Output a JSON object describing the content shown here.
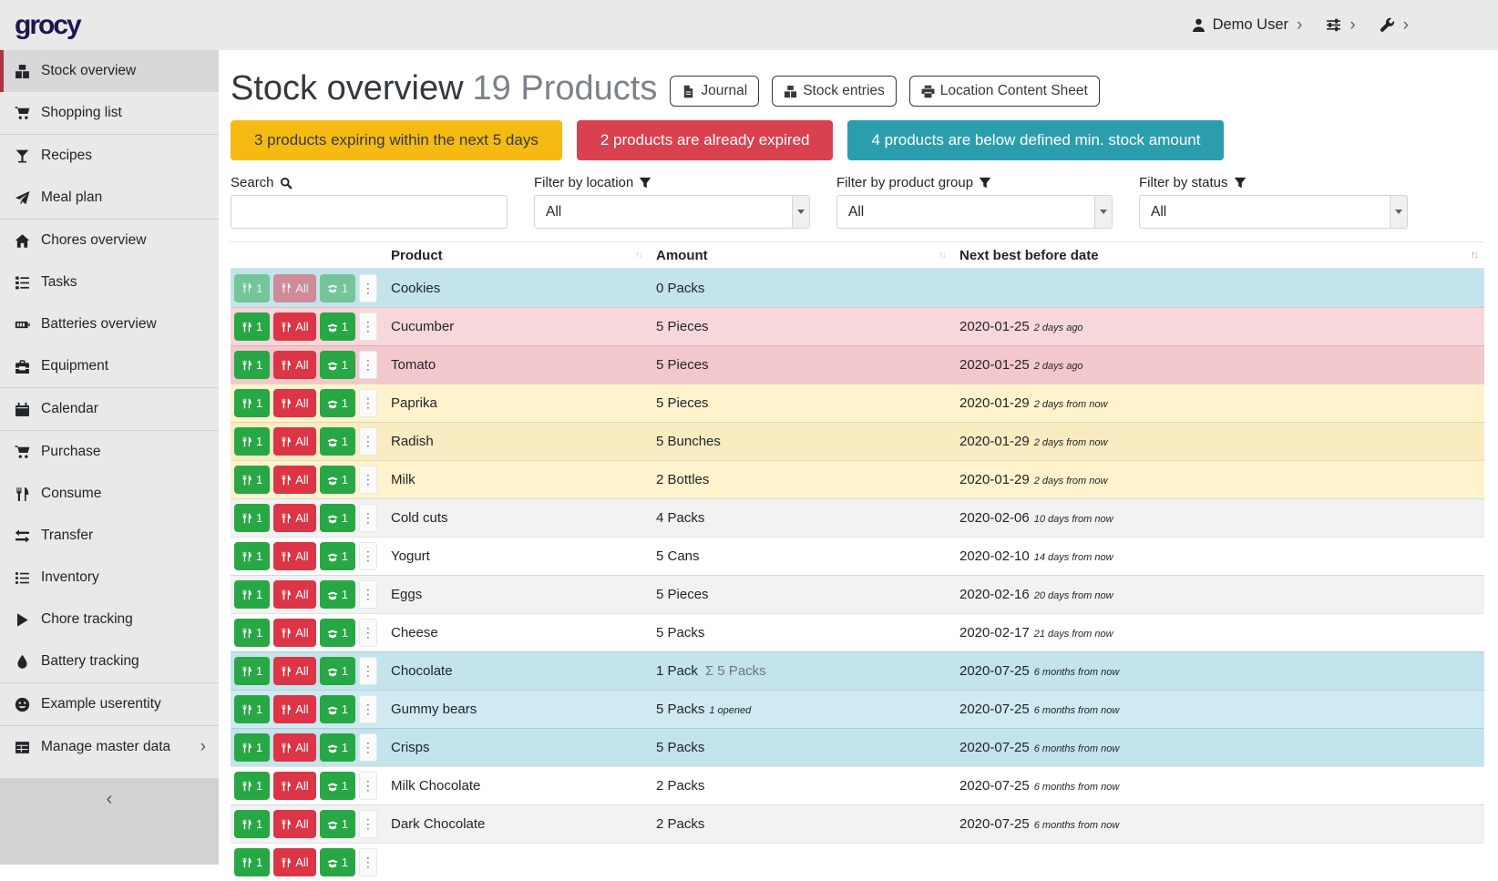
{
  "app": {
    "logo_text": "grocy"
  },
  "topbar": {
    "user_label": "Demo User",
    "user_icon": "user-icon",
    "settings_icon": "sliders-icon",
    "admin_icon": "wrench-icon"
  },
  "sidebar": {
    "items": [
      {
        "label": "Stock overview",
        "icon": "boxes-icon",
        "active": true
      },
      {
        "label": "Shopping list",
        "icon": "shopping-cart-icon",
        "divider_after": true
      },
      {
        "label": "Recipes",
        "icon": "cocktail-icon"
      },
      {
        "label": "Meal plan",
        "icon": "paper-plane-icon",
        "divider_after": true
      },
      {
        "label": "Chores overview",
        "icon": "home-icon"
      },
      {
        "label": "Tasks",
        "icon": "tasks-icon"
      },
      {
        "label": "Batteries overview",
        "icon": "battery-icon"
      },
      {
        "label": "Equipment",
        "icon": "toolbox-icon",
        "divider_after": true
      },
      {
        "label": "Calendar",
        "icon": "calendar-icon",
        "divider_after": true
      },
      {
        "label": "Purchase",
        "icon": "shopping-cart-icon"
      },
      {
        "label": "Consume",
        "icon": "utensils-icon"
      },
      {
        "label": "Transfer",
        "icon": "exchange-icon"
      },
      {
        "label": "Inventory",
        "icon": "list-icon"
      },
      {
        "label": "Chore tracking",
        "icon": "play-icon"
      },
      {
        "label": "Battery tracking",
        "icon": "drop-icon",
        "divider_after": true
      },
      {
        "label": "Example userentity",
        "icon": "smile-icon",
        "divider_after": true
      },
      {
        "label": "Manage master data",
        "icon": "table-icon",
        "has_submenu": true
      }
    ],
    "collapse_icon": "chevron-left-icon"
  },
  "header": {
    "title": "Stock overview",
    "subtitle": "19 Products",
    "buttons": [
      {
        "label": "Journal",
        "icon": "file-icon"
      },
      {
        "label": "Stock entries",
        "icon": "boxes-icon"
      },
      {
        "label": "Location Content Sheet",
        "icon": "print-icon"
      }
    ]
  },
  "alerts": [
    {
      "text": "3 products expiring within the next 5 days",
      "bg": "#f5bb13",
      "fg": "#343a40"
    },
    {
      "text": "2 products are already expired",
      "bg": "#d9414e",
      "fg": "#ffffff"
    },
    {
      "text": "4 products are below defined min. stock amount",
      "bg": "#2b9eae",
      "fg": "#ffffff"
    }
  ],
  "filters": {
    "search_label": "Search",
    "search_value": "",
    "selects": [
      {
        "label": "Filter by location",
        "value": "All"
      },
      {
        "label": "Filter by product group",
        "value": "All"
      },
      {
        "label": "Filter by status",
        "value": "All"
      }
    ]
  },
  "table": {
    "columns": [
      "Product",
      "Amount",
      "Next best before date"
    ],
    "sorted_column": "Next best before date",
    "sorted_direction": "ascending",
    "row_buttons": {
      "consume_one": "1",
      "consume_all": "All",
      "open_one": "1"
    },
    "rows": [
      {
        "product": "Cookies",
        "amount": "0 Packs",
        "amount_sum": "",
        "amount_note": "",
        "date": "",
        "date_ago": "",
        "status": "below-min-stock",
        "muted_buttons": true
      },
      {
        "product": "Cucumber",
        "amount": "5 Pieces",
        "amount_sum": "",
        "amount_note": "",
        "date": "2020-01-25",
        "date_ago": "2 days ago",
        "status": "expired"
      },
      {
        "product": "Tomato",
        "amount": "5 Pieces",
        "amount_sum": "",
        "amount_note": "",
        "date": "2020-01-25",
        "date_ago": "2 days ago",
        "status": "expired"
      },
      {
        "product": "Paprika",
        "amount": "5 Pieces",
        "amount_sum": "",
        "amount_note": "",
        "date": "2020-01-29",
        "date_ago": "2 days from now",
        "status": "expiring-soon"
      },
      {
        "product": "Radish",
        "amount": "5 Bunches",
        "amount_sum": "",
        "amount_note": "",
        "date": "2020-01-29",
        "date_ago": "2 days from now",
        "status": "expiring-soon"
      },
      {
        "product": "Milk",
        "amount": "2 Bottles",
        "amount_sum": "",
        "amount_note": "",
        "date": "2020-01-29",
        "date_ago": "2 days from now",
        "status": "expiring-soon"
      },
      {
        "product": "Cold cuts",
        "amount": "4 Packs",
        "amount_sum": "",
        "amount_note": "",
        "date": "2020-02-06",
        "date_ago": "10 days from now",
        "status": ""
      },
      {
        "product": "Yogurt",
        "amount": "5 Cans",
        "amount_sum": "",
        "amount_note": "",
        "date": "2020-02-10",
        "date_ago": "14 days from now",
        "status": ""
      },
      {
        "product": "Eggs",
        "amount": "5 Pieces",
        "amount_sum": "",
        "amount_note": "",
        "date": "2020-02-16",
        "date_ago": "20 days from now",
        "status": ""
      },
      {
        "product": "Cheese",
        "amount": "5 Packs",
        "amount_sum": "",
        "amount_note": "",
        "date": "2020-02-17",
        "date_ago": "21 days from now",
        "status": ""
      },
      {
        "product": "Chocolate",
        "amount": "1 Pack",
        "amount_sum": "Σ 5 Packs",
        "amount_note": "",
        "date": "2020-07-25",
        "date_ago": "6 months from now",
        "status": "below-min-stock"
      },
      {
        "product": "Gummy bears",
        "amount": "5 Packs",
        "amount_sum": "",
        "amount_note": "1 opened",
        "date": "2020-07-25",
        "date_ago": "6 months from now",
        "status": "below-min-stock"
      },
      {
        "product": "Crisps",
        "amount": "5 Packs",
        "amount_sum": "",
        "amount_note": "",
        "date": "2020-07-25",
        "date_ago": "6 months from now",
        "status": "below-min-stock"
      },
      {
        "product": "Milk Chocolate",
        "amount": "2 Packs",
        "amount_sum": "",
        "amount_note": "",
        "date": "2020-07-25",
        "date_ago": "6 months from now",
        "status": ""
      },
      {
        "product": "Dark Chocolate",
        "amount": "2 Packs",
        "amount_sum": "",
        "amount_note": "",
        "date": "2020-07-25",
        "date_ago": "6 months from now",
        "status": ""
      },
      {
        "product": "",
        "amount": "",
        "amount_sum": "",
        "amount_note": "",
        "date": "",
        "date_ago": "",
        "status": "",
        "partial": true
      }
    ]
  },
  "colors": {
    "topbar_bg": "#e9e9e9",
    "sidebar_active_border": "#b0323f",
    "alert_warning": "#f5bb13",
    "alert_danger": "#d9414e",
    "alert_info": "#2b9eae",
    "row_below_min_stock": "#cfeaf1",
    "row_expired": "#f8d7da",
    "row_expiring_soon": "#fff3cd",
    "button_consume_one": "#28a745",
    "button_consume_all": "#dc3545"
  }
}
